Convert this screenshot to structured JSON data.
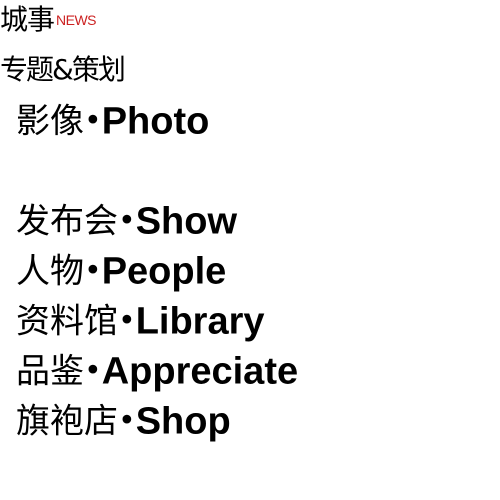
{
  "header": {
    "title": "城事",
    "subtitle": "NEWS",
    "subtitle_color": "#cc2222"
  },
  "subheader": {
    "title": "专题&策划"
  },
  "menu": {
    "items": [
      {
        "zh": "影像",
        "dot": "•",
        "en": "Photo"
      },
      {
        "zh": "发布会",
        "dot": "•",
        "en": "Show"
      },
      {
        "zh": "人物",
        "dot": "•",
        "en": "People"
      },
      {
        "zh": "资料馆",
        "dot": "•",
        "en": "Library"
      },
      {
        "zh": "品鉴",
        "dot": "•",
        "en": "Appreciate"
      },
      {
        "zh": "旗袍店",
        "dot": "•",
        "en": "Shop"
      }
    ]
  }
}
